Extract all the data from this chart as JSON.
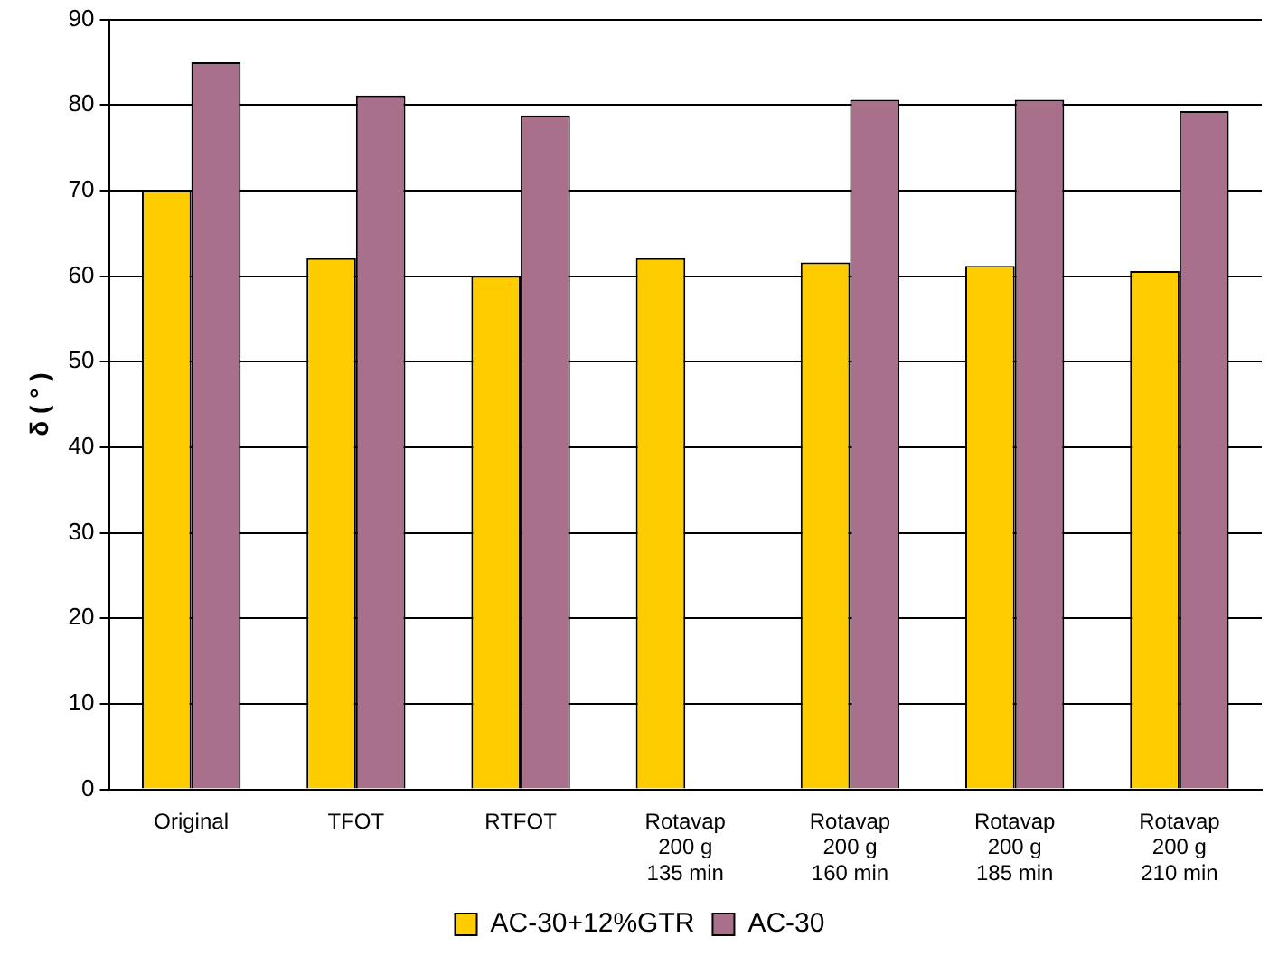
{
  "chart_data": {
    "type": "bar",
    "ylabel": "δ ( ° )",
    "categories": [
      "Original",
      "TFOT",
      "RTFOT",
      "Rotavap\n200 g\n135 min",
      "Rotavap\n200 g\n160 min",
      "Rotavap\n200 g\n185 min",
      "Rotavap\n200 g\n210 min"
    ],
    "series": [
      {
        "name": "AC-30+12%GTR",
        "color": "#ffcc00",
        "values": [
          70,
          62.1,
          60,
          62.1,
          61.6,
          61.2,
          60.6
        ]
      },
      {
        "name": "AC-30",
        "color": "#a8708a",
        "values": [
          85,
          81.1,
          78.8,
          null,
          80.6,
          80.6,
          79.3
        ]
      }
    ],
    "ylim": [
      0,
      90
    ],
    "yticks": [
      0,
      10,
      20,
      30,
      40,
      50,
      60,
      70,
      80,
      90
    ],
    "grid": "y",
    "legend": "bottom"
  }
}
